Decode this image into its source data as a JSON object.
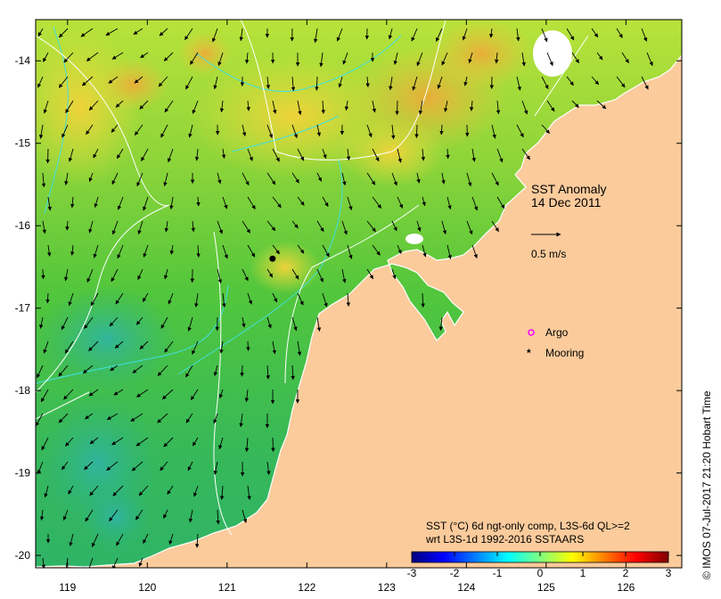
{
  "title": {
    "line1": "SST Anomaly",
    "line2": "14 Dec 2011"
  },
  "scale_vector": {
    "label": "0.5 m/s"
  },
  "legend": {
    "items": [
      {
        "label": "Argo",
        "marker": "open-circle",
        "color": "#ff00ff"
      },
      {
        "label": "Mooring",
        "marker": "star",
        "color": "#000000"
      }
    ]
  },
  "colorbar": {
    "caption_line1": "SST (°C) 6d ngt-only comp, L3S-6d QL>=2",
    "caption_line2": "wrt L3S-1d 1992-2016 SSTAARS",
    "min": -3,
    "max": 3,
    "ticks": [
      "-3",
      "-2",
      "-1",
      "0",
      "1",
      "2",
      "3"
    ],
    "colors": [
      "#00007f",
      "#0000ff",
      "#007fff",
      "#00ffff",
      "#7fff7f",
      "#ffff00",
      "#ff7f00",
      "#ff0000",
      "#7f0000"
    ]
  },
  "axes": {
    "x_ticks": [
      "119",
      "120",
      "121",
      "122",
      "123",
      "124",
      "125",
      "126"
    ],
    "y_ticks": [
      "-14",
      "-15",
      "-16",
      "-17",
      "-18",
      "-19",
      "-20"
    ],
    "lon_range": [
      118.6,
      126.7
    ],
    "lat_range": [
      -20.15,
      -13.5
    ]
  },
  "mooring_marker": {
    "lon": 121.57,
    "lat": -16.4
  },
  "credit": "© IMOS 07-Jul-2017 21:20 Hobart Time",
  "colors": {
    "land": "#fbcb9c",
    "ocean_base": "#58c93a",
    "contour": "#ffffff",
    "isobath": "#40e0e0"
  }
}
